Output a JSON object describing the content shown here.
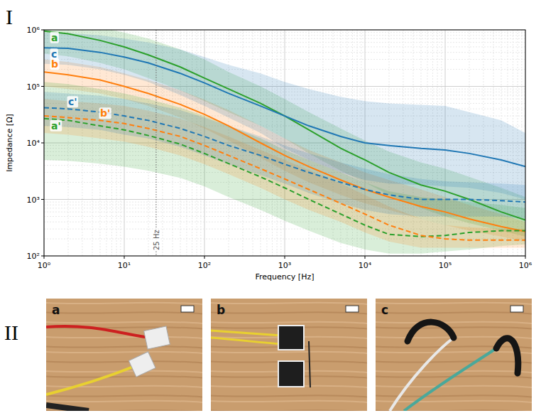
{
  "chart_data": {
    "type": "line",
    "log": true,
    "grid": true,
    "x_label": "Frequency [Hz]",
    "y_label": "Impedance [Ω]",
    "xlim": [
      1,
      1000000
    ],
    "ylim": [
      100,
      1000000
    ],
    "xticks": [
      {
        "value": 1,
        "label": "10⁰"
      },
      {
        "value": 10,
        "label": "10¹"
      },
      {
        "value": 100,
        "label": "10²"
      },
      {
        "value": 1000,
        "label": "10³"
      },
      {
        "value": 10000,
        "label": "10⁴"
      },
      {
        "value": 100000,
        "label": "10⁵"
      },
      {
        "value": 1000000,
        "label": "10⁶"
      }
    ],
    "yticks": [
      {
        "value": 100,
        "label": "10²"
      },
      {
        "value": 1000,
        "label": "10³"
      },
      {
        "value": 10000,
        "label": "10⁴"
      },
      {
        "value": 100000,
        "label": "10⁵"
      },
      {
        "value": 1000000,
        "label": "10⁶"
      }
    ],
    "annotations": [
      {
        "text": "25 Hz",
        "x": 25
      }
    ],
    "x": [
      1,
      2,
      5,
      10,
      20,
      50,
      100,
      200,
      500,
      1000,
      2000,
      5000,
      10000,
      20000,
      50000,
      100000,
      200000,
      500000,
      1000000
    ],
    "series": [
      {
        "name": "a",
        "color": "#2ca02c",
        "line_style": "solid",
        "values": [
          950000,
          850000,
          650000,
          500000,
          360000,
          220000,
          140000,
          90000,
          50000,
          30000,
          17000,
          8000,
          5000,
          3000,
          1800,
          1400,
          1000,
          600,
          430
        ],
        "lower": [
          380000,
          340000,
          260000,
          200000,
          140000,
          85000,
          55000,
          35000,
          20000,
          12000,
          6500,
          3200,
          2000,
          1200,
          700,
          500,
          380,
          280,
          220
        ],
        "upper": [
          1500000,
          1400000,
          1100000,
          900000,
          700000,
          450000,
          300000,
          180000,
          100000,
          60000,
          35000,
          18000,
          11000,
          7000,
          4500,
          3500,
          2500,
          1600,
          1100
        ]
      },
      {
        "name": "b",
        "color": "#ff7f0e",
        "line_style": "solid",
        "values": [
          180000,
          160000,
          130000,
          100000,
          75000,
          48000,
          32000,
          20000,
          10000,
          6000,
          3800,
          2200,
          1500,
          1100,
          750,
          600,
          450,
          330,
          270
        ],
        "lower": [
          100000,
          90000,
          75000,
          60000,
          45000,
          28000,
          18000,
          11000,
          5500,
          3200,
          2000,
          1200,
          850,
          650,
          450,
          350,
          280,
          220,
          180
        ],
        "upper": [
          300000,
          270000,
          220000,
          170000,
          130000,
          85000,
          58000,
          38000,
          20000,
          12000,
          7500,
          4500,
          3000,
          2200,
          1500,
          1100,
          800,
          550,
          400
        ]
      },
      {
        "name": "c",
        "color": "#1f77b4",
        "line_style": "solid",
        "values": [
          480000,
          470000,
          400000,
          330000,
          260000,
          170000,
          115000,
          75000,
          45000,
          30000,
          20000,
          13000,
          10000,
          9000,
          8000,
          7500,
          6500,
          5000,
          3800
        ],
        "lower": [
          250000,
          240000,
          200000,
          160000,
          120000,
          70000,
          45000,
          28000,
          15000,
          8000,
          5000,
          3000,
          2200,
          1900,
          1800,
          1700,
          1600,
          1300,
          1000
        ],
        "upper": [
          900000,
          880000,
          800000,
          700000,
          600000,
          450000,
          330000,
          240000,
          170000,
          120000,
          90000,
          65000,
          55000,
          50000,
          47000,
          45000,
          35000,
          25000,
          15000
        ]
      },
      {
        "name": "a'",
        "color": "#2ca02c",
        "line_style": "dashed",
        "values": [
          27000,
          25000,
          20000,
          17000,
          13500,
          9500,
          6500,
          4300,
          2500,
          1600,
          1000,
          550,
          350,
          240,
          220,
          230,
          260,
          280,
          280
        ],
        "lower": [
          5000,
          4800,
          4300,
          3800,
          3200,
          2400,
          1700,
          1100,
          650,
          420,
          280,
          170,
          130,
          110,
          110,
          120,
          130,
          150,
          160
        ],
        "upper": [
          120000,
          110000,
          90000,
          75000,
          60000,
          42000,
          30000,
          20000,
          12000,
          7500,
          5000,
          3000,
          2000,
          1400,
          1100,
          1000,
          900,
          800,
          700
        ]
      },
      {
        "name": "b'",
        "color": "#ff7f0e",
        "line_style": "dashed",
        "values": [
          30000,
          28000,
          25000,
          22000,
          18000,
          13000,
          9000,
          6000,
          3500,
          2300,
          1500,
          850,
          550,
          350,
          230,
          200,
          190,
          190,
          190
        ],
        "lower": [
          15000,
          14000,
          12000,
          10500,
          8500,
          6000,
          4200,
          2800,
          1600,
          1000,
          650,
          400,
          260,
          180,
          140,
          140,
          140,
          140,
          140
        ],
        "upper": [
          60000,
          55000,
          50000,
          45000,
          37000,
          27000,
          19000,
          13000,
          7500,
          5000,
          3300,
          1900,
          1200,
          750,
          450,
          350,
          320,
          300,
          300
        ]
      },
      {
        "name": "c'",
        "color": "#1f77b4",
        "line_style": "dashed",
        "values": [
          42000,
          40000,
          35000,
          30000,
          25000,
          18000,
          13000,
          9000,
          6000,
          4200,
          3000,
          2000,
          1500,
          1200,
          1000,
          1000,
          1000,
          950,
          900
        ],
        "lower": [
          20000,
          19000,
          17000,
          14000,
          12000,
          8500,
          6000,
          4200,
          2700,
          1900,
          1300,
          850,
          650,
          550,
          500,
          500,
          500,
          500,
          450
        ],
        "upper": [
          80000,
          75000,
          68000,
          60000,
          50000,
          38000,
          28000,
          20000,
          13000,
          9000,
          6500,
          4500,
          3500,
          2800,
          2300,
          2100,
          2000,
          1900,
          1800
        ]
      }
    ]
  },
  "panel_labels": [
    "I",
    "II"
  ],
  "photos": [
    {
      "label": "a"
    },
    {
      "label": "b"
    },
    {
      "label": "c"
    }
  ]
}
